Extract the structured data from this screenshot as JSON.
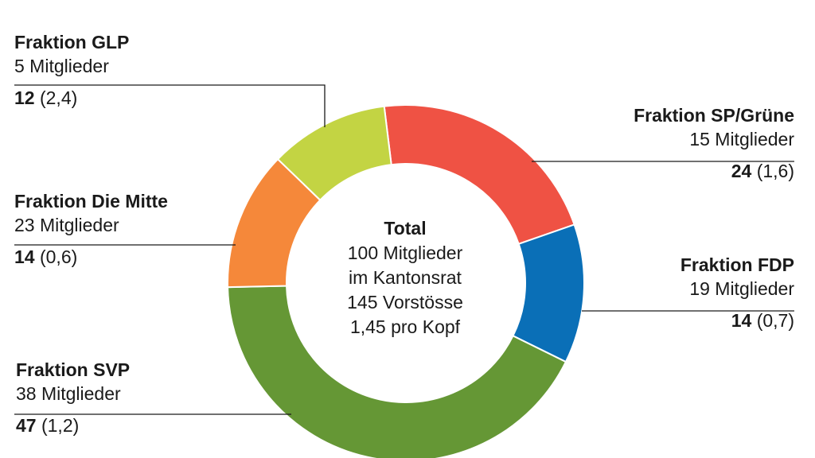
{
  "chart_data": {
    "type": "donut",
    "title": "",
    "center": {
      "title": "Total",
      "lines": [
        "100 Mitglieder",
        "im Kantonsrat",
        "145 Vorstösse",
        "1,45 pro Kopf"
      ]
    },
    "series": [
      {
        "name": "Fraktion SP/Grüne",
        "members_label": "15 Mitglieder",
        "value": 24,
        "value_label": "24",
        "per_head": "(1,6)",
        "color": "#ef5244"
      },
      {
        "name": "Fraktion FDP",
        "members_label": "19 Mitglieder",
        "value": 14,
        "value_label": "14",
        "per_head": "(0,7)",
        "color": "#0a6fb7"
      },
      {
        "name": "Fraktion SVP",
        "members_label": "38 Mitglieder",
        "value": 47,
        "value_label": "47",
        "per_head": "(1,2)",
        "color": "#659735"
      },
      {
        "name": "Fraktion Die Mitte",
        "members_label": "23 Mitglieder",
        "value": 14,
        "value_label": "14",
        "per_head": "(0,6)",
        "color": "#f5883a"
      },
      {
        "name": "Fraktion GLP",
        "members_label": "5 Mitglieder",
        "value": 12,
        "value_label": "12",
        "per_head": "(2,4)",
        "color": "#c3d443"
      }
    ],
    "total": 145,
    "start_angle_deg": -7
  }
}
